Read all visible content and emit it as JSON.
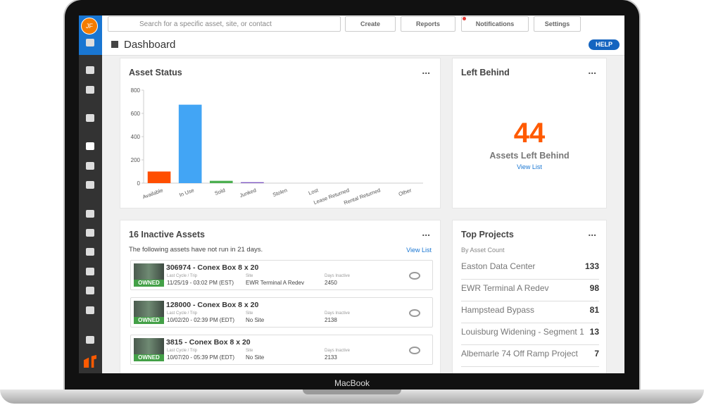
{
  "device": {
    "label": "MacBook"
  },
  "sidebar": {
    "avatar": "JF"
  },
  "topbar": {
    "search_placeholder": "Search for a specific asset, site, or contact",
    "buttons": [
      "Create",
      "Reports",
      "Notifications",
      "Settings"
    ]
  },
  "header": {
    "title": "Dashboard",
    "help": "HELP"
  },
  "asset_status": {
    "title": "Asset Status",
    "menu": "...",
    "chart": {
      "type": "bar",
      "categories": [
        "Available",
        "In Use",
        "Sold",
        "Junked",
        "Stolen",
        "Lost",
        "Lease Returned",
        "Rental Returned",
        "Other"
      ],
      "values": [
        100,
        675,
        20,
        8,
        0,
        0,
        0,
        0,
        0
      ],
      "colors": [
        "#ff4e00",
        "#42a5f5",
        "#4caf50",
        "#7e57c2",
        "#f5a623",
        "#e91e63",
        "#00bcd4",
        "#8d6e63",
        "#9e9e9e"
      ],
      "ylim": [
        0,
        800
      ],
      "yticks": [
        0,
        200,
        400,
        600,
        800
      ]
    }
  },
  "left_behind": {
    "title": "Left Behind",
    "menu": "...",
    "count": 44,
    "caption": "Assets Left Behind",
    "link": "View List"
  },
  "inactive_assets": {
    "title": "16 Inactive Assets",
    "menu": "...",
    "subtitle": "The following assets have not run in 21 days.",
    "link": "View List",
    "field_labels": [
      "Last Cycle / Trip",
      "Site",
      "Days Inactive"
    ],
    "items": [
      {
        "name": "306974 - Conex Box 8 x 20",
        "badge": "OWNED",
        "last_cycle": "11/25/19 - 03:02 PM (EST)",
        "site": "EWR Terminal A Redev",
        "days_inactive": 2450
      },
      {
        "name": "128000 - Conex Box 8 x 20",
        "badge": "OWNED",
        "last_cycle": "10/02/20 - 02:39 PM (EDT)",
        "site": "No Site",
        "days_inactive": 2138
      },
      {
        "name": "3815 - Conex Box 8 x 20",
        "badge": "OWNED",
        "last_cycle": "10/07/20 - 05:39 PM (EDT)",
        "site": "No Site",
        "days_inactive": 2133
      }
    ]
  },
  "top_projects": {
    "title": "Top Projects",
    "menu": "...",
    "subtitle": "By Asset Count",
    "rows": [
      {
        "name": "Easton Data Center",
        "count": 133
      },
      {
        "name": "EWR Terminal A Redev",
        "count": 98
      },
      {
        "name": "Hampstead Bypass",
        "count": 81
      },
      {
        "name": "Louisburg Widening - Segment 1",
        "count": 13
      },
      {
        "name": "Albemarle 74 Off Ramp Project",
        "count": 7
      }
    ]
  }
}
